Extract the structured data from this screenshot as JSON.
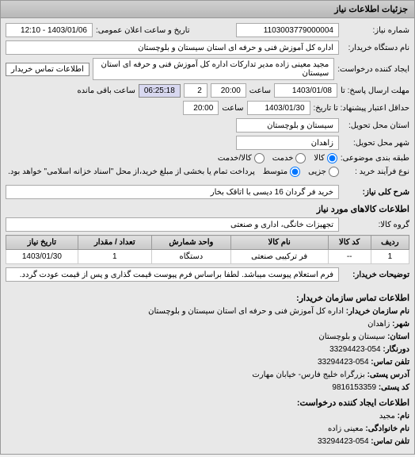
{
  "panel_title": "جزئیات اطلاعات نیاز",
  "fields": {
    "shomare_niaz": {
      "label": "شماره نیاز:",
      "value": "1103003779000004"
    },
    "tarikh_elan": {
      "label": "تاریخ و ساعت اعلان عمومی:",
      "value": "1403/01/06 - 12:10"
    },
    "nam_dastgah": {
      "label": "نام دستگاه خریدار:",
      "value": "اداره کل آموزش فنی و حرفه ای استان سیستان و بلوچستان"
    },
    "ijad_konande": {
      "label": "ایجاد کننده درخواست:",
      "value": "مجید معینی زاده مدیر تدارکات اداره کل آموزش فنی و حرفه ای استان سیستان"
    },
    "btn_tamas": "اطلاعات تماس خریدار",
    "mohlat_ersal_ta": {
      "label": "مهلت ارسال پاسخ: تا",
      "date": "1403/01/08",
      "time_label": "ساعت",
      "time": "20:00",
      "count": "2",
      "remain": "06:25:18",
      "remain_label": "ساعت باقی مانده"
    },
    "hadaghal_ta": {
      "label": "حداقل اعتبار پیشنهاد: تا تاریخ:",
      "date": "1403/01/30",
      "time_label": "ساعت",
      "time": "20:00"
    },
    "ostan": {
      "label": "استان محل تحویل:",
      "value": "سیستان و بلوچستان"
    },
    "shahr": {
      "label": "شهر محل تحویل:",
      "value": "زاهدان"
    },
    "tabaghe": {
      "label": "طبقه بندی موضوعی:",
      "opts": [
        "کالا",
        "خدمت",
        "کالا/خدمت"
      ],
      "selected": 0
    },
    "noe_farayand": {
      "label": "نوع فرآیند خرید :",
      "opts": [
        "جزیی",
        "متوسط"
      ],
      "selected": 1,
      "note": "پرداخت تمام یا بخشی از مبلغ خرید،از محل \"اسناد خزانه اسلامی\" خواهد بود."
    },
    "sharh_koli": {
      "label": "شرح کلی نیاز:",
      "value": "خرید فر گردان 16 دیسی با اتاقک بخار"
    }
  },
  "kalaha": {
    "title": "اطلاعات کالاهای مورد نیاز",
    "goroh": {
      "label": "گروه کالا:",
      "value": "تجهیزات خانگی، اداری و صنعتی"
    },
    "cols": [
      "ردیف",
      "کد کالا",
      "نام کالا",
      "واحد شمارش",
      "تعداد / مقدار",
      "تاریخ نیاز"
    ],
    "rows": [
      [
        "1",
        "--",
        "فر ترکیبی صنعتی",
        "دستگاه",
        "1",
        "1403/01/30"
      ]
    ]
  },
  "tozihat": {
    "label": "توضیحات خریدار:",
    "value": "فرم استعلام پیوست میباشد. لطفا براساس فرم پیوست قیمت گذاری و پس از قیمت عودت گردد."
  },
  "tamas": {
    "title": "اطلاعات تماس سازمان خریدار:",
    "lines": [
      {
        "k": "نام سازمان خریدار:",
        "v": "اداره کل آموزش فنی و حرفه ای استان سیستان و بلوچستان"
      },
      {
        "k": "شهر:",
        "v": "زاهدان"
      },
      {
        "k": "استان:",
        "v": "سیستان و بلوچستان"
      },
      {
        "k": "دورنگار:",
        "v": "054-33294423"
      },
      {
        "k": "تلفن تماس:",
        "v": "054-33294423"
      },
      {
        "k": "آدرس پستی:",
        "v": "بزرگراه خلیج فارس- خیابان مهارت"
      },
      {
        "k": "کد پستی:",
        "v": "9816153359"
      }
    ],
    "title2": "اطلاعات ایجاد کننده درخواست:",
    "lines2": [
      {
        "k": "نام:",
        "v": "مجید"
      },
      {
        "k": "نام خانوادگی:",
        "v": "معینی زاده"
      },
      {
        "k": "تلفن تماس:",
        "v": "054-33294423"
      }
    ]
  }
}
